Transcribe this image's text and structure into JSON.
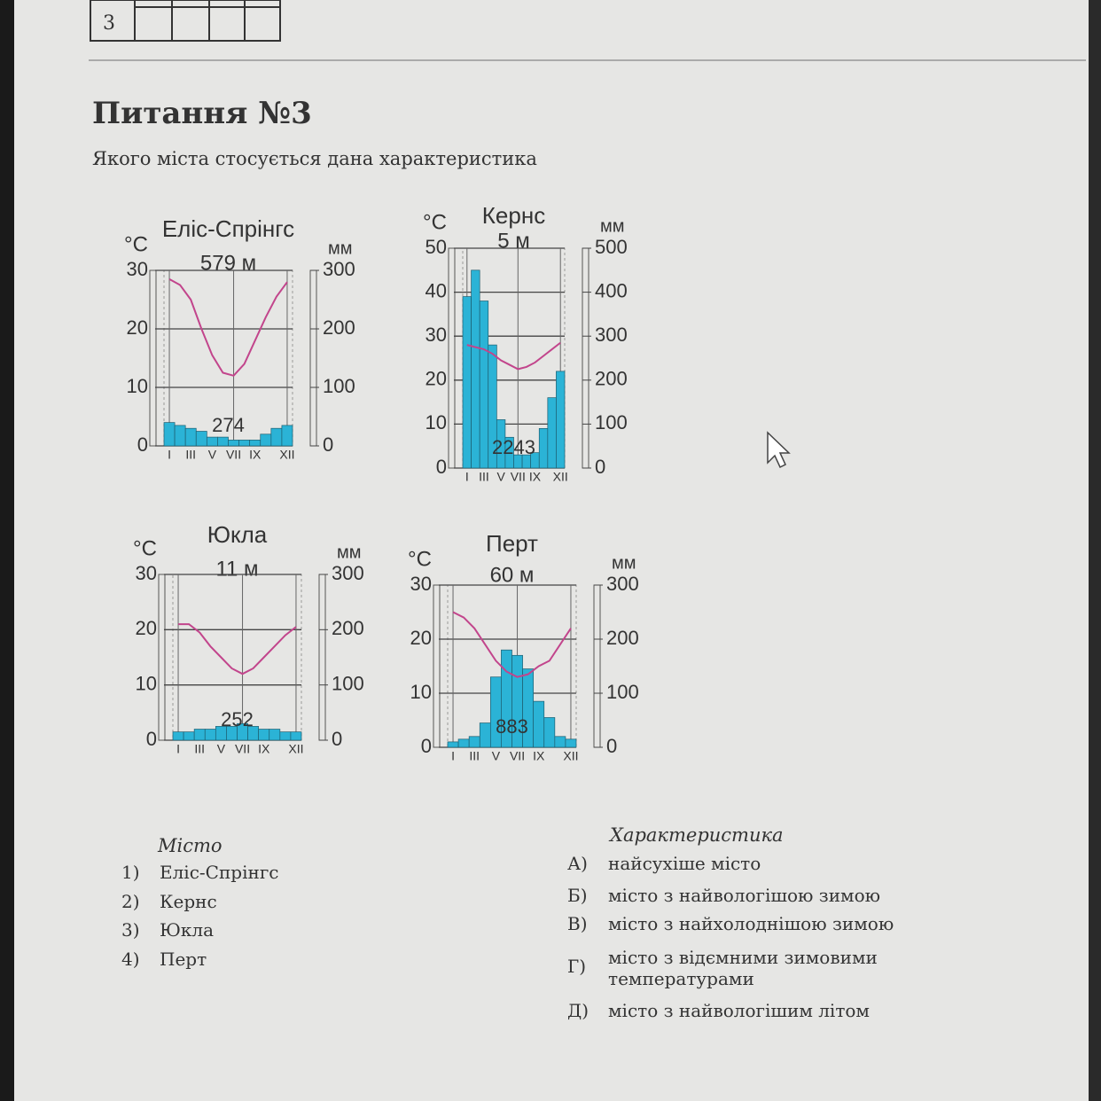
{
  "header_table": {
    "row_label": "3"
  },
  "question": {
    "title": "Питання №3",
    "text": "Якого міста стосується дана характеристика"
  },
  "chart_data": [
    {
      "type": "bar",
      "title": "Еліс-Спрінгс",
      "subtitle": "579 м",
      "ylabel": "°C",
      "y2label": "мм",
      "categories": [
        "I",
        null,
        "III",
        null,
        "V",
        null,
        "VII",
        null,
        "IX",
        null,
        null,
        "XII"
      ],
      "series": [
        {
          "type": "bar",
          "axis": "y2",
          "color": "#2bb3d6",
          "values": [
            40,
            35,
            30,
            25,
            15,
            15,
            10,
            10,
            10,
            20,
            30,
            35
          ]
        },
        {
          "type": "line",
          "color": "#c2458c",
          "values": [
            28.5,
            27.5,
            25,
            20,
            15.5,
            12.5,
            12,
            14,
            18,
            22,
            25.5,
            28
          ]
        }
      ],
      "annual_total": 274,
      "ylim": [
        0,
        30
      ],
      "yticks": [
        0,
        10,
        20,
        30
      ],
      "y2lim": [
        0,
        300
      ],
      "y2ticks": [
        0,
        100,
        200,
        300
      ]
    },
    {
      "type": "bar",
      "title": "Кернс",
      "subtitle": "5 м",
      "ylabel": "°C",
      "y2label": "мм",
      "categories": [
        "I",
        null,
        "III",
        null,
        "V",
        null,
        "VII",
        null,
        "IX",
        null,
        null,
        "XII"
      ],
      "series": [
        {
          "type": "bar",
          "axis": "y2",
          "color": "#2bb3d6",
          "values": [
            390,
            450,
            380,
            280,
            110,
            70,
            30,
            30,
            35,
            90,
            160,
            220
          ]
        },
        {
          "type": "line",
          "color": "#c2458c",
          "values": [
            28,
            27.5,
            27,
            26,
            24.5,
            23.5,
            22.5,
            23,
            24,
            25.5,
            27,
            28.5
          ]
        }
      ],
      "annual_total": 2243,
      "ylim": [
        0,
        50
      ],
      "yticks": [
        0,
        10,
        20,
        30,
        40,
        50
      ],
      "y2lim": [
        0,
        500
      ],
      "y2ticks": [
        0,
        100,
        200,
        300,
        400,
        500
      ]
    },
    {
      "type": "bar",
      "title": "Юкла",
      "subtitle": "11 м",
      "ylabel": "°C",
      "y2label": "мм",
      "categories": [
        "I",
        null,
        "III",
        null,
        "V",
        null,
        "VII",
        null,
        "IX",
        null,
        null,
        "XII"
      ],
      "series": [
        {
          "type": "bar",
          "axis": "y2",
          "color": "#2bb3d6",
          "values": [
            15,
            15,
            20,
            20,
            25,
            25,
            30,
            25,
            20,
            20,
            15,
            15
          ]
        },
        {
          "type": "line",
          "color": "#c2458c",
          "values": [
            21,
            21,
            19.5,
            17,
            15,
            13,
            12,
            13,
            15,
            17,
            19,
            20.5
          ]
        }
      ],
      "annual_total": 252,
      "ylim": [
        0,
        30
      ],
      "yticks": [
        0,
        10,
        20,
        30
      ],
      "y2lim": [
        0,
        300
      ],
      "y2ticks": [
        0,
        100,
        200,
        300
      ]
    },
    {
      "type": "bar",
      "title": "Перт",
      "subtitle": "60 м",
      "ylabel": "°C",
      "y2label": "мм",
      "categories": [
        "I",
        null,
        "III",
        null,
        "V",
        null,
        "VII",
        null,
        "IX",
        null,
        null,
        "XII"
      ],
      "series": [
        {
          "type": "bar",
          "axis": "y2",
          "color": "#2bb3d6",
          "values": [
            10,
            15,
            20,
            45,
            130,
            180,
            170,
            145,
            85,
            55,
            20,
            15
          ]
        },
        {
          "type": "line",
          "color": "#c2458c",
          "values": [
            25,
            24,
            22,
            19,
            16,
            14,
            13,
            13.5,
            15,
            16,
            19,
            22
          ]
        }
      ],
      "annual_total": 883,
      "ylim": [
        0,
        30
      ],
      "yticks": [
        0,
        10,
        20,
        30
      ],
      "y2lim": [
        0,
        300
      ],
      "y2ticks": [
        0,
        100,
        200,
        300
      ]
    }
  ],
  "cities": {
    "title": "Місто",
    "items": [
      {
        "num": "1)",
        "text": "Еліс-Спрінгс"
      },
      {
        "num": "2)",
        "text": "Кернс"
      },
      {
        "num": "3)",
        "text": "Юкла"
      },
      {
        "num": "4)",
        "text": "Перт"
      }
    ]
  },
  "characteristics": {
    "title": "Характеристика",
    "items": [
      {
        "letter": "А)",
        "text": "найсухіше місто"
      },
      {
        "letter": "Б)",
        "text": "місто з найвологішою зимою"
      },
      {
        "letter": "В)",
        "text": "місто з найхолоднішою зимою"
      },
      {
        "letter": "Г)",
        "text": "місто з відємними зимовими температурами"
      },
      {
        "letter": "Д)",
        "text": "місто з найвологішим літом"
      }
    ]
  }
}
